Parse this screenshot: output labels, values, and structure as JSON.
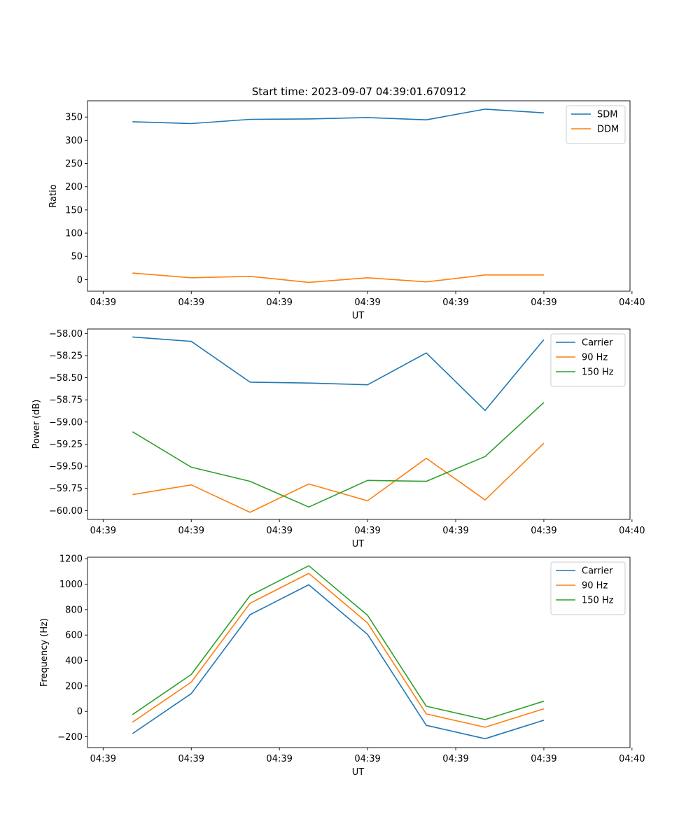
{
  "figure_title": "Start time: 2023-09-07 04:39:01.670912",
  "colors": {
    "blue": "#1f77b4",
    "orange": "#ff7f0e",
    "green": "#2ca02c"
  },
  "chart_data": [
    {
      "type": "line",
      "title": "Start time: 2023-09-07 04:39:01.670912",
      "xlabel": "UT",
      "ylabel": "Ratio",
      "x": [
        1,
        2,
        3,
        4,
        5,
        6,
        7,
        8
      ],
      "xlim": [
        0.234,
        9.466
      ],
      "xticks": [
        0.5,
        2,
        3.5,
        5,
        6.5,
        8,
        9.5
      ],
      "xtick_labels": [
        "04:39",
        "04:39",
        "04:39",
        "04:39",
        "04:39",
        "04:39",
        "04:40"
      ],
      "ylim": [
        -25,
        385
      ],
      "yticks": [
        0,
        50,
        100,
        150,
        200,
        250,
        300,
        350
      ],
      "ytick_labels": [
        "0",
        "50",
        "100",
        "150",
        "200",
        "250",
        "300",
        "350"
      ],
      "legend_position": "upper-right",
      "series": [
        {
          "name": "SDM",
          "color": "#1f77b4",
          "values": [
            340,
            336,
            345,
            346,
            349,
            344,
            367,
            359
          ]
        },
        {
          "name": "DDM",
          "color": "#ff7f0e",
          "values": [
            14,
            4,
            7,
            -6,
            4,
            -5,
            10,
            10
          ]
        }
      ]
    },
    {
      "type": "line",
      "title": "",
      "xlabel": "UT",
      "ylabel": "Power (dB)",
      "x": [
        1,
        2,
        3,
        4,
        5,
        6,
        7,
        8
      ],
      "xlim": [
        0.234,
        9.466
      ],
      "xticks": [
        0.5,
        2,
        3.5,
        5,
        6.5,
        8,
        9.5
      ],
      "xtick_labels": [
        "04:39",
        "04:39",
        "04:39",
        "04:39",
        "04:39",
        "04:39",
        "04:40"
      ],
      "ylim": [
        -60.1,
        -57.95
      ],
      "yticks": [
        -60.0,
        -59.75,
        -59.5,
        -59.25,
        -59.0,
        -58.75,
        -58.5,
        -58.25,
        -58.0
      ],
      "ytick_labels": [
        "−60.00",
        "−59.75",
        "−59.50",
        "−59.25",
        "−59.00",
        "−58.75",
        "−58.50",
        "−58.25",
        "−58.00"
      ],
      "legend_position": "upper-right",
      "series": [
        {
          "name": "Carrier",
          "color": "#1f77b4",
          "values": [
            -58.04,
            -58.09,
            -58.55,
            -58.56,
            -58.58,
            -58.22,
            -58.87,
            -58.07
          ]
        },
        {
          "name": "90 Hz",
          "color": "#ff7f0e",
          "values": [
            -59.82,
            -59.71,
            -60.02,
            -59.7,
            -59.89,
            -59.41,
            -59.88,
            -59.24
          ]
        },
        {
          "name": "150 Hz",
          "color": "#2ca02c",
          "values": [
            -59.11,
            -59.51,
            -59.67,
            -59.96,
            -59.66,
            -59.67,
            -59.39,
            -58.78
          ]
        }
      ]
    },
    {
      "type": "line",
      "title": "",
      "xlabel": "UT",
      "ylabel": "Frequency (Hz)",
      "x": [
        1,
        2,
        3,
        4,
        5,
        6,
        7,
        8
      ],
      "xlim": [
        0.234,
        9.466
      ],
      "xticks": [
        0.5,
        2,
        3.5,
        5,
        6.5,
        8,
        9.5
      ],
      "xtick_labels": [
        "04:39",
        "04:39",
        "04:39",
        "04:39",
        "04:39",
        "04:39",
        "04:40"
      ],
      "ylim": [
        -285,
        1212
      ],
      "yticks": [
        -200,
        0,
        200,
        400,
        600,
        800,
        1000,
        1200
      ],
      "ytick_labels": [
        "−200",
        "0",
        "200",
        "400",
        "600",
        "800",
        "1000",
        "1200"
      ],
      "legend_position": "upper-right",
      "series": [
        {
          "name": "Carrier",
          "color": "#1f77b4",
          "values": [
            -175,
            140,
            760,
            995,
            605,
            -110,
            -215,
            -70
          ]
        },
        {
          "name": "90 Hz",
          "color": "#ff7f0e",
          "values": [
            -85,
            230,
            850,
            1085,
            695,
            -20,
            -125,
            20
          ]
        },
        {
          "name": "150 Hz",
          "color": "#2ca02c",
          "values": [
            -25,
            290,
            910,
            1145,
            755,
            40,
            -65,
            80
          ]
        }
      ]
    }
  ]
}
